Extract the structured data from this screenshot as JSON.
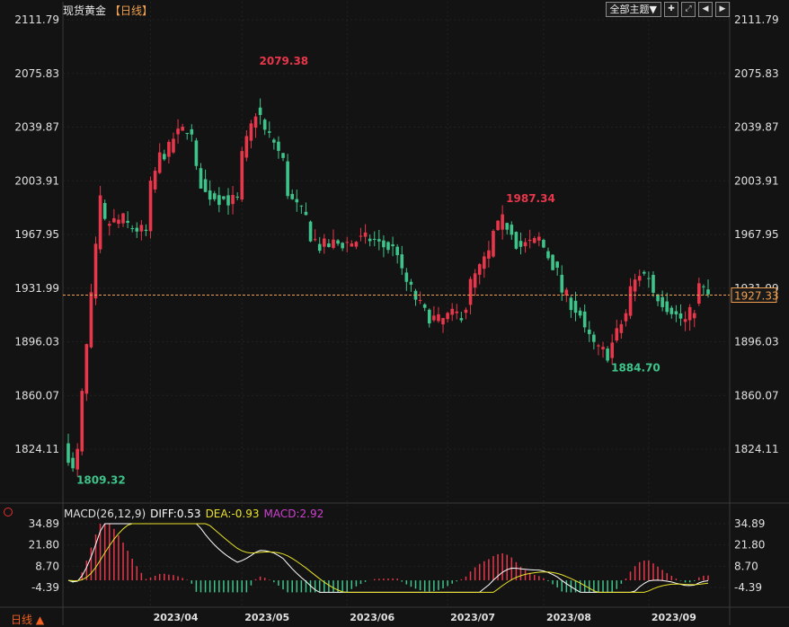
{
  "header": {
    "instrument": "现货黄金",
    "period": "【日线】",
    "theme_button": "全部主题▼",
    "tool_icons": [
      "crosshair-icon",
      "expand-icon",
      "prev-icon",
      "next-icon"
    ]
  },
  "price_axis": {
    "ticks": [
      "2111.79",
      "2075.83",
      "2039.87",
      "2003.91",
      "1967.95",
      "1931.99",
      "1896.03",
      "1860.07",
      "1824.11"
    ],
    "current_price": "1927.33"
  },
  "annotations": {
    "high": "2079.38",
    "low": "1809.32",
    "local_high": "1987.34",
    "local_low": "1884.70"
  },
  "macd": {
    "params": "MACD(26,12,9)",
    "diff": "DIFF:0.53",
    "dea": "DEA:-0.93",
    "macd": "MACD:2.92",
    "axis_ticks": [
      "34.89",
      "21.80",
      "8.70",
      "-4.39"
    ]
  },
  "x_labels": [
    "2023/04",
    "2023/05",
    "2023/06",
    "2023/07",
    "2023/08",
    "2023/09"
  ],
  "bottom_period": "日线 ▲",
  "colors": {
    "up": "#e8364a",
    "down": "#3ec48a",
    "diff_line": "#ffffff",
    "dea_line": "#e8e22a",
    "macd_text": "#d040d0",
    "price_line": "#f0a050"
  },
  "chart_data": {
    "type": "candlestick",
    "title": "现货黄金",
    "ylim": [
      1810,
      2112
    ],
    "anchors": [
      {
        "date": "2023-03-08",
        "close": 1820
      },
      {
        "date": "2023-03-09",
        "close": 1809
      },
      {
        "date": "2023-03-13",
        "close": 1860
      },
      {
        "date": "2023-03-17",
        "close": 1990
      },
      {
        "date": "2023-03-20",
        "close": 1975
      },
      {
        "date": "2023-03-24",
        "close": 1978
      },
      {
        "date": "2023-03-31",
        "close": 1969
      },
      {
        "date": "2023-04-05",
        "close": 2020
      },
      {
        "date": "2023-04-13",
        "close": 2040
      },
      {
        "date": "2023-04-19",
        "close": 1995
      },
      {
        "date": "2023-04-28",
        "close": 1990
      },
      {
        "date": "2023-05-03",
        "close": 2040
      },
      {
        "date": "2023-05-04",
        "close": 2050
      },
      {
        "date": "2023-05-10",
        "close": 2030
      },
      {
        "date": "2023-05-16",
        "close": 1990
      },
      {
        "date": "2023-05-24",
        "close": 1960
      },
      {
        "date": "2023-05-31",
        "close": 1962
      },
      {
        "date": "2023-06-08",
        "close": 1965
      },
      {
        "date": "2023-06-16",
        "close": 1957
      },
      {
        "date": "2023-06-23",
        "close": 1920
      },
      {
        "date": "2023-06-29",
        "close": 1910
      },
      {
        "date": "2023-07-06",
        "close": 1915
      },
      {
        "date": "2023-07-14",
        "close": 1955
      },
      {
        "date": "2023-07-19",
        "close": 1977
      },
      {
        "date": "2023-07-25",
        "close": 1960
      },
      {
        "date": "2023-07-31",
        "close": 1965
      },
      {
        "date": "2023-08-04",
        "close": 1942
      },
      {
        "date": "2023-08-11",
        "close": 1914
      },
      {
        "date": "2023-08-17",
        "close": 1890
      },
      {
        "date": "2023-08-21",
        "close": 1888
      },
      {
        "date": "2023-08-25",
        "close": 1915
      },
      {
        "date": "2023-08-30",
        "close": 1942
      },
      {
        "date": "2023-09-01",
        "close": 1940
      },
      {
        "date": "2023-09-07",
        "close": 1920
      },
      {
        "date": "2023-09-13",
        "close": 1910
      },
      {
        "date": "2023-09-18",
        "close": 1933
      },
      {
        "date": "2023-09-20",
        "close": 1927
      }
    ]
  }
}
